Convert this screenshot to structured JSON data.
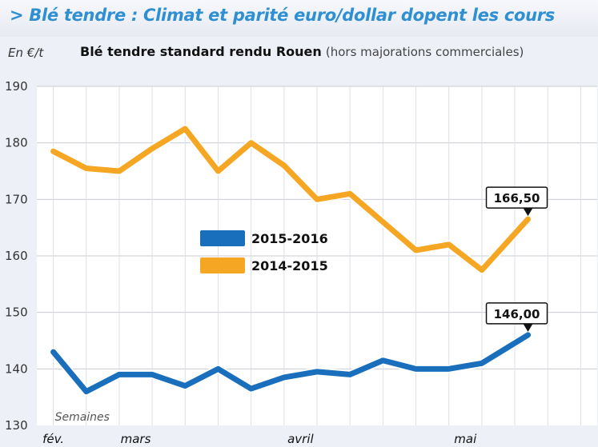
{
  "header": {
    "title": "> Blé tendre : Climat et parité euro/dollar dopent les cours",
    "unit": "En €/t",
    "subtitle_main": "Blé tendre standard rendu Rouen",
    "subtitle_note": "(hors majorations commerciales)"
  },
  "chart_data": {
    "type": "line",
    "title": "Blé tendre standard rendu Rouen",
    "subtitle": "(hors majorations commerciales)",
    "ylabel": "En €/t",
    "xlabel": "Semaines",
    "ylim": [
      130,
      190
    ],
    "yticks": [
      130,
      140,
      150,
      160,
      170,
      180,
      190
    ],
    "x": [
      1,
      2,
      3,
      4,
      5,
      6,
      7,
      8,
      9,
      10,
      11,
      12,
      13,
      14,
      15,
      16,
      17
    ],
    "xlim": [
      0.5,
      17.5
    ],
    "month_labels": [
      {
        "label": "fév.",
        "x": 1
      },
      {
        "label": "mars",
        "x": 3.5
      },
      {
        "label": "avril",
        "x": 8.5
      },
      {
        "label": "mai",
        "x": 13.5
      }
    ],
    "grid": true,
    "legend_position": "center-left",
    "series": [
      {
        "name": "2015-2016",
        "color": "#1a6fbd",
        "values": [
          143,
          136,
          139,
          139,
          137,
          140,
          136.5,
          138.5,
          139.5,
          139,
          141.5,
          140,
          140,
          141,
          146
        ],
        "x": [
          1,
          2,
          3,
          4,
          5,
          6,
          7,
          8,
          9,
          10,
          11,
          12,
          13,
          14,
          15.4
        ],
        "last_label": "146,00"
      },
      {
        "name": "2014-2015",
        "color": "#f5a623",
        "values": [
          178.5,
          175.5,
          175,
          179,
          182.5,
          175,
          180,
          176,
          170,
          171,
          166,
          161,
          162,
          157.5,
          166.5
        ],
        "x": [
          1,
          2,
          3,
          4,
          5,
          6,
          7,
          8,
          9,
          10,
          11,
          12,
          13,
          14,
          15.4
        ],
        "last_label": "166,50"
      }
    ]
  }
}
